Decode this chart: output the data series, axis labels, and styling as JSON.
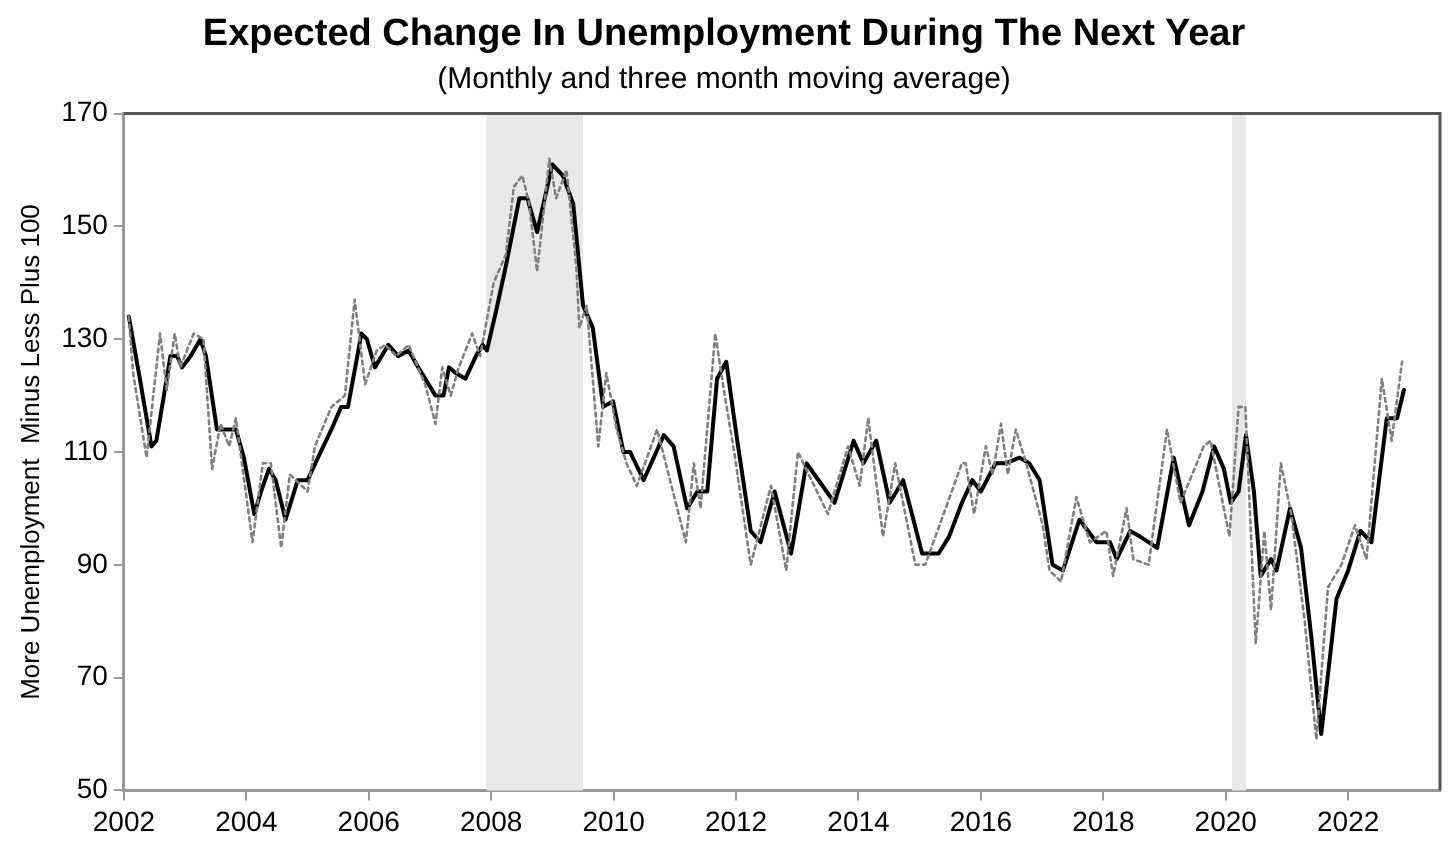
{
  "chart_data": {
    "type": "line",
    "title": "Expected Change In Unemployment During The Next Year",
    "subtitle": "(Monthly and three month moving average)",
    "ylabel": "More Unemployment  Minus Less Plus 100",
    "xlim": [
      2002,
      2023.5
    ],
    "xticks": [
      2002,
      2004,
      2006,
      2008,
      2010,
      2012,
      2014,
      2016,
      2018,
      2020,
      2022
    ],
    "ylim": [
      50,
      170
    ],
    "yticks": [
      50,
      70,
      90,
      110,
      130,
      150,
      170
    ],
    "grid": false,
    "legend": false,
    "marker": "none",
    "bands": [
      {
        "axis": "x",
        "from": 2007.92,
        "to": 2009.5,
        "color": "#e8e8e8"
      },
      {
        "axis": "x",
        "from": 2020.1,
        "to": 2020.33,
        "color": "#e8e8e8"
      }
    ],
    "series": [
      {
        "color": "#808080",
        "line_style": "dotted",
        "x": [
          2002.08,
          2002.15,
          2002.37,
          2002.59,
          2002.7,
          2002.83,
          2002.92,
          2003.14,
          2003.3,
          2003.44,
          2003.58,
          2003.72,
          2003.83,
          2004.1,
          2004.27,
          2004.4,
          2004.57,
          2004.71,
          2005.0,
          2005.12,
          2005.39,
          2005.61,
          2005.77,
          2005.94,
          2006.13,
          2006.27,
          2006.45,
          2006.65,
          2006.92,
          2007.09,
          2007.2,
          2007.34,
          2007.47,
          2007.69,
          2007.82,
          2008.04,
          2008.24,
          2008.37,
          2008.51,
          2008.62,
          2008.75,
          2008.95,
          2009.06,
          2009.23,
          2009.39,
          2009.44,
          2009.56,
          2009.75,
          2009.88,
          2010.05,
          2010.21,
          2010.38,
          2010.71,
          2011.18,
          2011.31,
          2011.42,
          2011.66,
          2011.8,
          2011.97,
          2012.24,
          2012.57,
          2012.82,
          2013.01,
          2013.5,
          2013.83,
          2014.02,
          2014.16,
          2014.4,
          2014.6,
          2014.93,
          2015.09,
          2015.69,
          2015.75,
          2015.89,
          2016.08,
          2016.19,
          2016.33,
          2016.44,
          2016.57,
          2016.74,
          2017.01,
          2017.12,
          2017.31,
          2017.56,
          2017.78,
          2018.05,
          2018.16,
          2018.38,
          2018.49,
          2018.74,
          2019.04,
          2019.26,
          2019.64,
          2019.75,
          2020.06,
          2020.21,
          2020.32,
          2020.49,
          2020.63,
          2020.74,
          2020.9,
          2021.07,
          2021.29,
          2021.48,
          2021.67,
          2021.89,
          2022.11,
          2022.3,
          2022.55,
          2022.71,
          2022.88
        ],
        "values": [
          134,
          124,
          109,
          131,
          121,
          131,
          125,
          131,
          130,
          107,
          115,
          111,
          116,
          94,
          108,
          108,
          93,
          106,
          103,
          111,
          118,
          120,
          137,
          122,
          128,
          129,
          127,
          129,
          122,
          115,
          125,
          120,
          125,
          131,
          127,
          140,
          145,
          157,
          159,
          154,
          142,
          162,
          155,
          160,
          143,
          132,
          136,
          111,
          124,
          114,
          108,
          104,
          114,
          94,
          108,
          100,
          131,
          121,
          110,
          90,
          104,
          89,
          110,
          99,
          111,
          104,
          116,
          95,
          108,
          90,
          90,
          108,
          108,
          99,
          111,
          106,
          115,
          106,
          114,
          108,
          97,
          89,
          87,
          102,
          94,
          96,
          88,
          100,
          91,
          90,
          114,
          101,
          111,
          112,
          95,
          118,
          118,
          76,
          96,
          82,
          108,
          99,
          80,
          59,
          86,
          90,
          97,
          91,
          123,
          112,
          126
        ]
      },
      {
        "color": "#000000",
        "line_style": "solid",
        "x": [
          2002.08,
          2002.26,
          2002.45,
          2002.53,
          2002.76,
          2002.87,
          2002.95,
          2003.09,
          2003.25,
          2003.34,
          2003.52,
          2003.69,
          2003.83,
          2003.96,
          2004.13,
          2004.24,
          2004.37,
          2004.48,
          2004.64,
          2004.84,
          2005.0,
          2005.17,
          2005.39,
          2005.55,
          2005.66,
          2005.88,
          2005.97,
          2006.1,
          2006.32,
          2006.48,
          2006.65,
          2006.81,
          2007.09,
          2007.22,
          2007.31,
          2007.42,
          2007.58,
          2007.75,
          2007.86,
          2007.93,
          2008.08,
          2008.24,
          2008.46,
          2008.59,
          2008.75,
          2009.0,
          2009.17,
          2009.34,
          2009.5,
          2009.66,
          2009.83,
          2009.99,
          2010.16,
          2010.27,
          2010.49,
          2010.82,
          2010.98,
          2011.2,
          2011.37,
          2011.53,
          2011.69,
          2011.84,
          2012.02,
          2012.24,
          2012.4,
          2012.63,
          2012.9,
          2013.15,
          2013.61,
          2013.92,
          2014.08,
          2014.29,
          2014.51,
          2014.73,
          2015.04,
          2015.31,
          2015.48,
          2015.69,
          2015.86,
          2016.0,
          2016.24,
          2016.41,
          2016.63,
          2016.79,
          2016.96,
          2017.17,
          2017.34,
          2017.61,
          2017.89,
          2018.11,
          2018.22,
          2018.44,
          2018.6,
          2018.88,
          2019.15,
          2019.4,
          2019.62,
          2019.81,
          2019.97,
          2020.08,
          2020.21,
          2020.33,
          2020.46,
          2020.57,
          2020.74,
          2020.83,
          2021.05,
          2021.23,
          2021.4,
          2021.56,
          2021.81,
          2022.0,
          2022.2,
          2022.38,
          2022.63,
          2022.8,
          2022.91
        ],
        "values": [
          134,
          123,
          111,
          112,
          127,
          127,
          125,
          127,
          130,
          127,
          114,
          114,
          114,
          109,
          99,
          103,
          107,
          105,
          98,
          105,
          105,
          109,
          114,
          118,
          118,
          131,
          130,
          125,
          129,
          127,
          128,
          125,
          120,
          120,
          125,
          124,
          123,
          127,
          129,
          128,
          135,
          143,
          155,
          155,
          149,
          161,
          159,
          154,
          136,
          132,
          118,
          119,
          110,
          110,
          105,
          113,
          111,
          100,
          103,
          103,
          123,
          126,
          112,
          96,
          94,
          103,
          92,
          108,
          101,
          112,
          108,
          112,
          101,
          105,
          92,
          92,
          95,
          101,
          105,
          103,
          108,
          108,
          109,
          108,
          105,
          90,
          89,
          98,
          94,
          94,
          91,
          96,
          95,
          93,
          109,
          97,
          103,
          111,
          107,
          101,
          103,
          113,
          103,
          88,
          91,
          89,
          100,
          93,
          77,
          60,
          84,
          89,
          96,
          94,
          116,
          116,
          121
        ]
      }
    ]
  }
}
